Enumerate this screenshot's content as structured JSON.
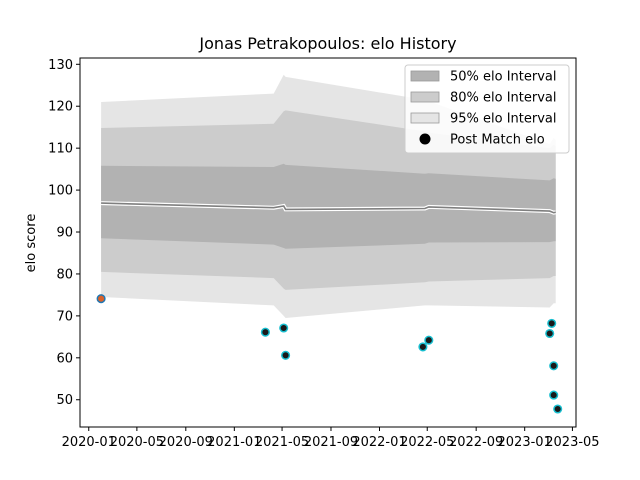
{
  "chart_data": {
    "type": "line",
    "title": "Jonas Petrakopoulos: elo History",
    "xlabel": "",
    "ylabel": "elo score",
    "xlim": [
      "2019-12-10",
      "2023-05-10"
    ],
    "ylim": [
      43.5,
      131.5
    ],
    "x_ticks": [
      "2020-01-01",
      "2020-05-01",
      "2020-09-01",
      "2021-01-01",
      "2021-05-01",
      "2021-09-01",
      "2022-01-01",
      "2022-05-01",
      "2022-09-01",
      "2023-01-01",
      "2023-05-01"
    ],
    "x_tick_labels": [
      "2020-01",
      "2020-05",
      "2020-09",
      "2021-01",
      "2021-05",
      "2021-09",
      "2022-01",
      "2022-05",
      "2022-09",
      "2023-01",
      "2023-05"
    ],
    "y_ticks": [
      50,
      60,
      70,
      80,
      90,
      100,
      110,
      120,
      130
    ],
    "grid": false,
    "legend_position": "top-right",
    "legend": [
      {
        "label": "50% elo Interval",
        "kind": "band",
        "color": "#b2b2b2"
      },
      {
        "label": "80% elo Interval",
        "kind": "band",
        "color": "#cccccc"
      },
      {
        "label": "95% elo Interval",
        "kind": "band",
        "color": "#e5e5e5"
      },
      {
        "label": "Post Match elo",
        "kind": "marker",
        "color": "#000000"
      }
    ],
    "band_dates": [
      "2020-02-01",
      "2021-04-10",
      "2021-05-05",
      "2021-05-10",
      "2022-04-25",
      "2022-05-05",
      "2023-03-05",
      "2023-03-15",
      "2023-03-20"
    ],
    "mean": [
      96.9,
      95.8,
      96.2,
      95.4,
      95.6,
      96.0,
      95.0,
      94.6,
      94.7
    ],
    "band_95": {
      "upper": [
        121.0,
        123.0,
        127.5,
        127.0,
        121.5,
        121.2,
        111.0,
        112.5,
        112.0
      ],
      "lower": [
        74.5,
        72.5,
        70.0,
        69.5,
        72.5,
        72.5,
        72.0,
        73.0,
        73.0
      ]
    },
    "band_80": {
      "upper": [
        114.8,
        115.8,
        118.8,
        119.0,
        114.0,
        113.7,
        110.0,
        110.8,
        110.5
      ],
      "lower": [
        80.5,
        79.0,
        76.5,
        76.2,
        78.0,
        78.2,
        79.0,
        79.5,
        79.5
      ]
    },
    "band_50": {
      "upper": [
        105.8,
        105.5,
        106.3,
        106.0,
        103.9,
        104.0,
        102.3,
        102.8,
        102.7
      ],
      "lower": [
        88.5,
        87.0,
        86.2,
        86.0,
        87.2,
        87.5,
        87.6,
        87.8,
        87.8
      ]
    },
    "points": [
      {
        "date": "2020-02-01",
        "elo": 74.1,
        "fill": "#d9622b",
        "edge": "#1f77b4"
      },
      {
        "date": "2021-03-20",
        "elo": 66.1,
        "fill": "#1a1a1a",
        "edge": "#17becf"
      },
      {
        "date": "2021-05-05",
        "elo": 67.1,
        "fill": "#1a1a1a",
        "edge": "#17becf"
      },
      {
        "date": "2021-05-10",
        "elo": 60.6,
        "fill": "#1a1a1a",
        "edge": "#17becf"
      },
      {
        "date": "2022-04-20",
        "elo": 62.6,
        "fill": "#1a1a1a",
        "edge": "#17becf"
      },
      {
        "date": "2022-05-05",
        "elo": 64.2,
        "fill": "#1a1a1a",
        "edge": "#17becf"
      },
      {
        "date": "2023-03-05",
        "elo": 65.8,
        "fill": "#1a1a1a",
        "edge": "#17becf"
      },
      {
        "date": "2023-03-10",
        "elo": 68.2,
        "fill": "#1a1a1a",
        "edge": "#17becf"
      },
      {
        "date": "2023-03-15",
        "elo": 58.1,
        "fill": "#1a1a1a",
        "edge": "#17becf"
      },
      {
        "date": "2023-03-15",
        "elo": 51.1,
        "fill": "#1a1a1a",
        "edge": "#17becf"
      },
      {
        "date": "2023-03-25",
        "elo": 47.8,
        "fill": "#1a1a1a",
        "edge": "#17becf"
      }
    ],
    "colors": {
      "band_95": "#e5e5e5",
      "band_80": "#cccccc",
      "band_50": "#b2b2b2",
      "mean_line": "#7f7f7f",
      "mean_highlight": "#ffffff"
    }
  }
}
